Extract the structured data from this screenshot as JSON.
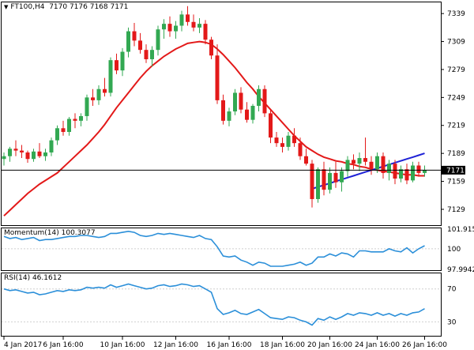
{
  "colors": {
    "bull": "#32a852",
    "bear": "#e31919",
    "sma_red": "#e31919",
    "sma_blue": "#1f22d6",
    "momentum": "#2b8fd9",
    "rsi": "#2b8fd9",
    "grid": "#cfcfcf",
    "axis": "#000000"
  },
  "header": {
    "triangle_icon": "triangle-down-icon",
    "symbol": "FT100,H4",
    "ohlc": "7170 7176 7168 7171"
  },
  "momentum_panel": {
    "label": "Momentum(14) 100.3077"
  },
  "rsi_panel": {
    "label": "RSI(14) 46.1612"
  },
  "chart_data": [
    {
      "type": "candlestick",
      "title": "FT100,H4",
      "ylim": [
        7112,
        7351
      ],
      "ytick_labels": [
        "7339",
        "7309",
        "7279",
        "7249",
        "7219",
        "7189",
        "7159",
        "7129"
      ],
      "last_price_label": "7171",
      "last_price": 7171,
      "xtick_labels": [
        "4 Jan 2017",
        "6 Jan 16:00",
        "10 Jan 16:00",
        "12 Jan 16:00",
        "16 Jan 16:00",
        "18 Jan 16:00",
        "20 Jan 16:00",
        "24 Jan 16:00",
        "26 Jan 16:00"
      ],
      "candles": [
        [
          7183,
          7190,
          7176,
          7186
        ],
        [
          7186,
          7196,
          7180,
          7194
        ],
        [
          7194,
          7203,
          7186,
          7192
        ],
        [
          7192,
          7198,
          7184,
          7190
        ],
        [
          7190,
          7192,
          7179,
          7183
        ],
        [
          7183,
          7194,
          7180,
          7191
        ],
        [
          7191,
          7200,
          7184,
          7186
        ],
        [
          7186,
          7194,
          7181,
          7190
        ],
        [
          7190,
          7206,
          7186,
          7203
        ],
        [
          7203,
          7219,
          7198,
          7216
        ],
        [
          7216,
          7224,
          7208,
          7212
        ],
        [
          7212,
          7228,
          7208,
          7226
        ],
        [
          7226,
          7232,
          7216,
          7224
        ],
        [
          7224,
          7232,
          7218,
          7229
        ],
        [
          7229,
          7252,
          7224,
          7249
        ],
        [
          7249,
          7258,
          7240,
          7246
        ],
        [
          7246,
          7262,
          7241,
          7258
        ],
        [
          7258,
          7270,
          7250,
          7254
        ],
        [
          7254,
          7292,
          7250,
          7289
        ],
        [
          7289,
          7296,
          7274,
          7278
        ],
        [
          7278,
          7302,
          7272,
          7298
        ],
        [
          7298,
          7324,
          7292,
          7320
        ],
        [
          7320,
          7329,
          7304,
          7310
        ],
        [
          7310,
          7318,
          7296,
          7300
        ],
        [
          7300,
          7306,
          7286,
          7290
        ],
        [
          7290,
          7304,
          7282,
          7300
        ],
        [
          7300,
          7326,
          7294,
          7322
        ],
        [
          7322,
          7333,
          7312,
          7328
        ],
        [
          7328,
          7336,
          7314,
          7320
        ],
        [
          7320,
          7331,
          7312,
          7326
        ],
        [
          7326,
          7342,
          7320,
          7338
        ],
        [
          7338,
          7347,
          7326,
          7330
        ],
        [
          7330,
          7338,
          7320,
          7324
        ],
        [
          7324,
          7334,
          7318,
          7328
        ],
        [
          7328,
          7332,
          7306,
          7311
        ],
        [
          7311,
          7314,
          7290,
          7294
        ],
        [
          7294,
          7306,
          7242,
          7246
        ],
        [
          7246,
          7252,
          7220,
          7224
        ],
        [
          7224,
          7238,
          7218,
          7234
        ],
        [
          7234,
          7258,
          7230,
          7254
        ],
        [
          7254,
          7260,
          7232,
          7236
        ],
        [
          7236,
          7244,
          7222,
          7225
        ],
        [
          7225,
          7242,
          7221,
          7240
        ],
        [
          7240,
          7262,
          7234,
          7258
        ],
        [
          7258,
          7262,
          7228,
          7232
        ],
        [
          7232,
          7236,
          7200,
          7206
        ],
        [
          7206,
          7212,
          7196,
          7200
        ],
        [
          7200,
          7206,
          7190,
          7196
        ],
        [
          7196,
          7212,
          7192,
          7208
        ],
        [
          7208,
          7216,
          7196,
          7200
        ],
        [
          7200,
          7206,
          7182,
          7186
        ],
        [
          7186,
          7194,
          7176,
          7178
        ],
        [
          7178,
          7182,
          7131,
          7140
        ],
        [
          7140,
          7174,
          7136,
          7172
        ],
        [
          7172,
          7180,
          7144,
          7150
        ],
        [
          7150,
          7174,
          7146,
          7168
        ],
        [
          7168,
          7180,
          7152,
          7158
        ],
        [
          7158,
          7174,
          7148,
          7170
        ],
        [
          7170,
          7186,
          7164,
          7182
        ],
        [
          7182,
          7188,
          7172,
          7178
        ],
        [
          7178,
          7190,
          7170,
          7184
        ],
        [
          7184,
          7206,
          7176,
          7180
        ],
        [
          7180,
          7186,
          7166,
          7172
        ],
        [
          7172,
          7190,
          7168,
          7186
        ],
        [
          7186,
          7190,
          7162,
          7168
        ],
        [
          7168,
          7182,
          7160,
          7178
        ],
        [
          7178,
          7182,
          7156,
          7162
        ],
        [
          7162,
          7176,
          7158,
          7172
        ],
        [
          7172,
          7178,
          7156,
          7160
        ],
        [
          7160,
          7180,
          7158,
          7176
        ],
        [
          7176,
          7180,
          7164,
          7168
        ],
        [
          7168,
          7176,
          7164,
          7171
        ]
      ],
      "series": [
        {
          "values": [
            7122,
            7128,
            7134,
            7140,
            7146,
            7151,
            7156,
            7160,
            7164,
            7168,
            7174,
            7180,
            7186,
            7192,
            7198,
            7205,
            7212,
            7220,
            7229,
            7238,
            7246,
            7254,
            7262,
            7270,
            7277,
            7283,
            7288,
            7293,
            7297,
            7301,
            7304,
            7307,
            7308,
            7309,
            7308,
            7306,
            7301,
            7295,
            7288,
            7281,
            7273,
            7265,
            7258,
            7250,
            7243,
            7236,
            7229,
            7222,
            7215,
            7208,
            7202,
            7196,
            7192,
            7188,
            7185,
            7183,
            7181,
            7180,
            7178,
            7177,
            7175,
            7174,
            7172,
            7171,
            7170,
            7169,
            7168,
            7167,
            7166,
            7166,
            7165,
            7165
          ]
        },
        {
          "values": [
            null,
            null,
            null,
            null,
            null,
            null,
            null,
            null,
            null,
            null,
            null,
            null,
            null,
            null,
            null,
            null,
            null,
            null,
            null,
            null,
            null,
            null,
            null,
            null,
            null,
            null,
            null,
            null,
            null,
            null,
            null,
            null,
            null,
            null,
            null,
            null,
            null,
            null,
            null,
            null,
            null,
            null,
            null,
            null,
            null,
            null,
            null,
            null,
            null,
            null,
            null,
            null,
            7151,
            7153,
            7155,
            7157,
            7159,
            7161,
            7163,
            7165,
            7167,
            7169,
            7171,
            7173,
            7175,
            7177,
            7179,
            7181,
            7183,
            7185,
            7187,
            7189
          ]
        }
      ]
    },
    {
      "type": "line",
      "title": "Momentum(14)",
      "ylim": [
        97.9942,
        101.915
      ],
      "ytick_labels": [
        "101.915",
        "100",
        "97.9942"
      ],
      "series": [
        {
          "name": "Momentum(14)",
          "values": [
            101.2,
            101.0,
            101.1,
            100.9,
            101.0,
            101.1,
            100.8,
            100.9,
            100.9,
            101.0,
            101.1,
            101.2,
            101.2,
            101.3,
            101.3,
            101.2,
            101.1,
            101.2,
            101.5,
            101.5,
            101.6,
            101.7,
            101.6,
            101.3,
            101.2,
            101.3,
            101.5,
            101.4,
            101.5,
            101.4,
            101.3,
            101.2,
            101.1,
            101.3,
            101.0,
            100.9,
            100.2,
            99.3,
            99.2,
            99.3,
            98.9,
            98.7,
            98.4,
            98.7,
            98.6,
            98.3,
            98.3,
            98.3,
            98.4,
            98.5,
            98.7,
            98.4,
            98.6,
            99.2,
            99.2,
            99.5,
            99.3,
            99.6,
            99.5,
            99.2,
            99.8,
            99.8,
            99.7,
            99.7,
            99.7,
            100.0,
            99.8,
            99.7,
            100.1,
            99.6,
            100.0,
            100.3
          ]
        }
      ]
    },
    {
      "type": "line",
      "title": "RSI(14)",
      "ylim": [
        14,
        88
      ],
      "ytick_labels": [
        "70",
        "30"
      ],
      "series": [
        {
          "name": "RSI(14)",
          "values": [
            70,
            68,
            69,
            67,
            65,
            66,
            63,
            64,
            66,
            68,
            67,
            69,
            68,
            69,
            72,
            71,
            72,
            71,
            75,
            72,
            74,
            76,
            74,
            72,
            70,
            71,
            74,
            75,
            73,
            74,
            76,
            75,
            73,
            74,
            70,
            66,
            46,
            39,
            41,
            44,
            40,
            39,
            42,
            45,
            40,
            35,
            34,
            33,
            36,
            35,
            32,
            30,
            26,
            34,
            32,
            36,
            33,
            36,
            40,
            38,
            41,
            40,
            38,
            41,
            38,
            40,
            37,
            40,
            38,
            41,
            42,
            46
          ]
        }
      ]
    }
  ]
}
